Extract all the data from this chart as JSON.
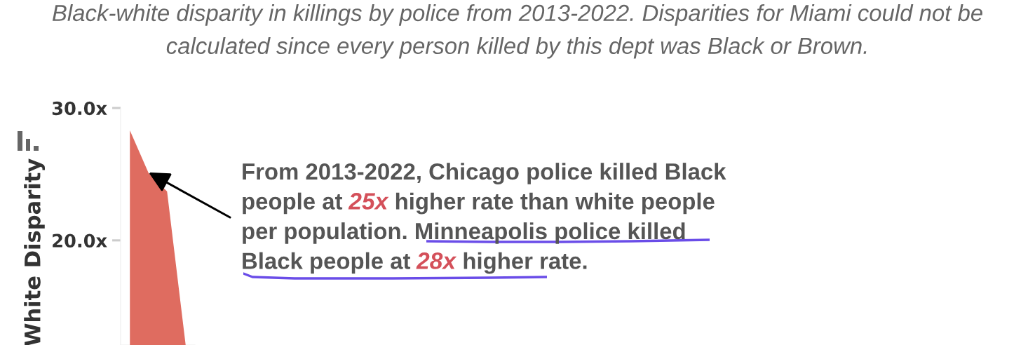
{
  "chart_data": {
    "type": "area",
    "title": "Black-white disparity in killings by police from 2013-2022. Disparities for Miami could not be calculated since every person killed by this dept was Black or Brown.",
    "ylabel": "White Disparity",
    "categories": [
      null,
      null,
      null,
      null
    ],
    "values": [
      28.3,
      25.1,
      23.7,
      12.1
    ],
    "color": "#df6c60",
    "ylim": [
      12.1,
      30
    ],
    "yticks": [
      {
        "value": 20,
        "label": "20.0x"
      },
      {
        "value": 30,
        "label": "30.0x"
      }
    ],
    "tick_labels": "y",
    "annotations": [
      "From 2013-2022, Chicago police killed Black",
      "people at",
      "25x",
      "higher rate than white people",
      "per population. Minneapolis police killed",
      "Black people at",
      "28x",
      "higher rate."
    ]
  }
}
